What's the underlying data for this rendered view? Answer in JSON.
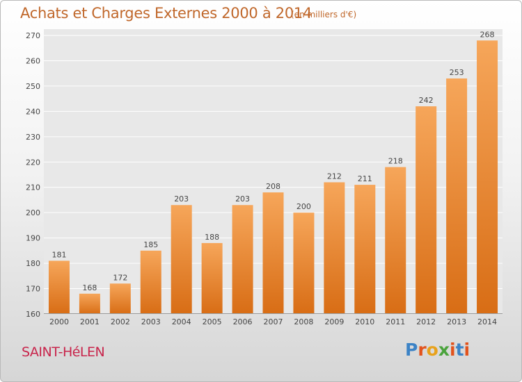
{
  "title": "Achats et Charges Externes 2000 à 2014",
  "subtitle": "(en milliers d'€)",
  "town": "SAINT-HéLEN",
  "logo": {
    "text": "Proxiti",
    "colors": [
      "#3c83c6",
      "#e2531d",
      "#e8a21b",
      "#4aa33c",
      "#e2531d",
      "#3c83c6",
      "#e2531d"
    ]
  },
  "colors": {
    "bar_light": "#f6a65a",
    "bar_dark": "#d86d15",
    "plot_background": "#e8e8e8",
    "grid": "#ffffff",
    "title": "#c0672a",
    "town": "#c8244b"
  },
  "chart_data": {
    "type": "bar",
    "categories": [
      "2000",
      "2001",
      "2002",
      "2003",
      "2004",
      "2005",
      "2006",
      "2007",
      "2008",
      "2009",
      "2010",
      "2011",
      "2012",
      "2013",
      "2014"
    ],
    "values": [
      181,
      168,
      172,
      185,
      203,
      188,
      203,
      208,
      200,
      212,
      211,
      218,
      242,
      253,
      268
    ],
    "ylim": [
      160,
      270
    ],
    "yticks": [
      160,
      170,
      180,
      190,
      200,
      210,
      220,
      230,
      240,
      250,
      260,
      270
    ],
    "grid": true,
    "xlabel": "",
    "ylabel": ""
  }
}
